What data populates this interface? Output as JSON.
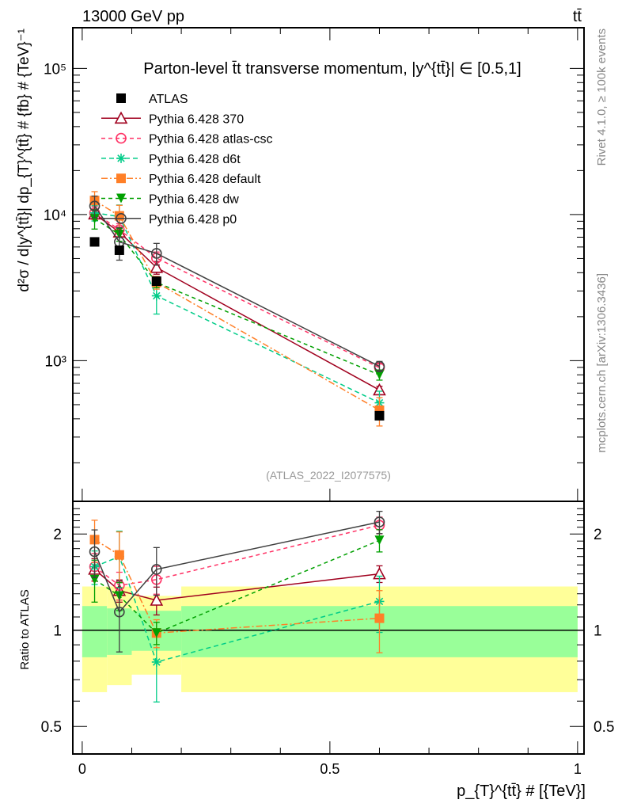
{
  "chart_data": {
    "type": "line",
    "header_left": "13000 GeV pp",
    "header_right": "tt̄",
    "title": "Parton-level t̄t transverse momentum, |y^{tt̄}| ∈ [0.5,1]",
    "ylabel": "d²σ / d|y^{tt̄}| dp_{T}^{tt̄} # {fb} # {TeV}⁻¹",
    "ratio_ylabel": "Ratio to ATLAS",
    "xlabel": "p_{T}^{tt̄} # [{TeV}]",
    "side_text_top": "Rivet 4.1.0, ≥ 100k events",
    "side_text_bottom": "mcplots.cern.ch [arXiv:1306.3436]",
    "watermark": "(ATLAS_2022_I2077575)",
    "xlim": [
      -0.019,
      1.013
    ],
    "ylim": [
      109,
      190000
    ],
    "yscale": "log",
    "ratio_ylim": [
      0.41,
      2.53
    ],
    "x_ticks": [
      {
        "v": 0,
        "label": "0"
      },
      {
        "v": 0.5,
        "label": "0.5"
      },
      {
        "v": 1,
        "label": "1"
      }
    ],
    "y_ticks": [
      {
        "v": 1000,
        "label": "10³"
      },
      {
        "v": 10000,
        "label": "10⁴"
      },
      {
        "v": 100000,
        "label": "10⁵"
      }
    ],
    "ratio_ticks": [
      {
        "v": 0.5,
        "label": "0.5"
      },
      {
        "v": 1,
        "label": "1"
      },
      {
        "v": 2,
        "label": "2"
      }
    ],
    "bins": [
      [
        0,
        0.05
      ],
      [
        0.05,
        0.1
      ],
      [
        0.1,
        0.2
      ],
      [
        0.2,
        1.0
      ]
    ],
    "x": [
      0.025,
      0.075,
      0.15,
      0.6
    ],
    "data": {
      "name": "ATLAS",
      "values": [
        6500,
        5700,
        3500,
        420
      ],
      "color": "#000000"
    },
    "band_1sigma": [
      [
        0.823,
        1.19
      ],
      [
        0.837,
        1.17
      ],
      [
        0.862,
        1.15
      ],
      [
        0.823,
        1.19
      ]
    ],
    "band_2sigma": [
      [
        0.64,
        1.37
      ],
      [
        0.673,
        1.37
      ],
      [
        0.726,
        1.28
      ],
      [
        0.64,
        1.37
      ]
    ],
    "band_colors": {
      "inner": "#99ff99",
      "outer": "#ffff99"
    },
    "legend_position": "top-left",
    "series": [
      {
        "name": "Pythia 6.428 370",
        "values": [
          10075,
          7580,
          4340,
          630
        ],
        "ratio": [
          1.55,
          1.33,
          1.24,
          1.5
        ],
        "rel_err": [
          0.08,
          0.08,
          0.1,
          0.06
        ],
        "color": "#a0001e",
        "dash": "",
        "marker": "triangle-open"
      },
      {
        "name": "Pythia 6.428 atlas-csc",
        "values": [
          10270,
          7870,
          5040,
          895
        ],
        "ratio": [
          1.58,
          1.38,
          1.44,
          2.13
        ],
        "rel_err": [
          0.1,
          0.1,
          0.1,
          0.06
        ],
        "color": "#ff3366",
        "dash": "5,4",
        "marker": "circle-open"
      },
      {
        "name": "Pythia 6.428 d6t",
        "values": [
          10270,
          9690,
          2780,
          515
        ],
        "ratio": [
          1.58,
          1.7,
          0.795,
          1.23
        ],
        "rel_err": [
          0.12,
          0.2,
          0.25,
          0.2
        ],
        "color": "#00cc88",
        "dash": "6,4",
        "marker": "star"
      },
      {
        "name": "Pythia 6.428 default",
        "values": [
          12480,
          9800,
          3430,
          458
        ],
        "ratio": [
          1.92,
          1.72,
          0.98,
          1.09
        ],
        "rel_err": [
          0.15,
          0.18,
          0.1,
          0.22
        ],
        "color": "#ff7f27",
        "dash": "8,3,2,3",
        "marker": "square"
      },
      {
        "name": "Pythia 6.428 dw",
        "values": [
          9360,
          7300,
          3430,
          800
        ],
        "ratio": [
          1.44,
          1.28,
          0.98,
          1.91
        ],
        "rel_err": [
          0.15,
          0.1,
          0.08,
          0.08
        ],
        "color": "#00a000",
        "dash": "5,4",
        "marker": "triangle-down"
      },
      {
        "name": "Pythia 6.428 p0",
        "values": [
          11440,
          6500,
          5425,
          915
        ],
        "ratio": [
          1.76,
          1.14,
          1.55,
          2.18
        ],
        "rel_err": [
          0.17,
          0.25,
          0.17,
          0.08
        ],
        "color": "#404040",
        "dash": "",
        "marker": "circle-open"
      }
    ]
  }
}
